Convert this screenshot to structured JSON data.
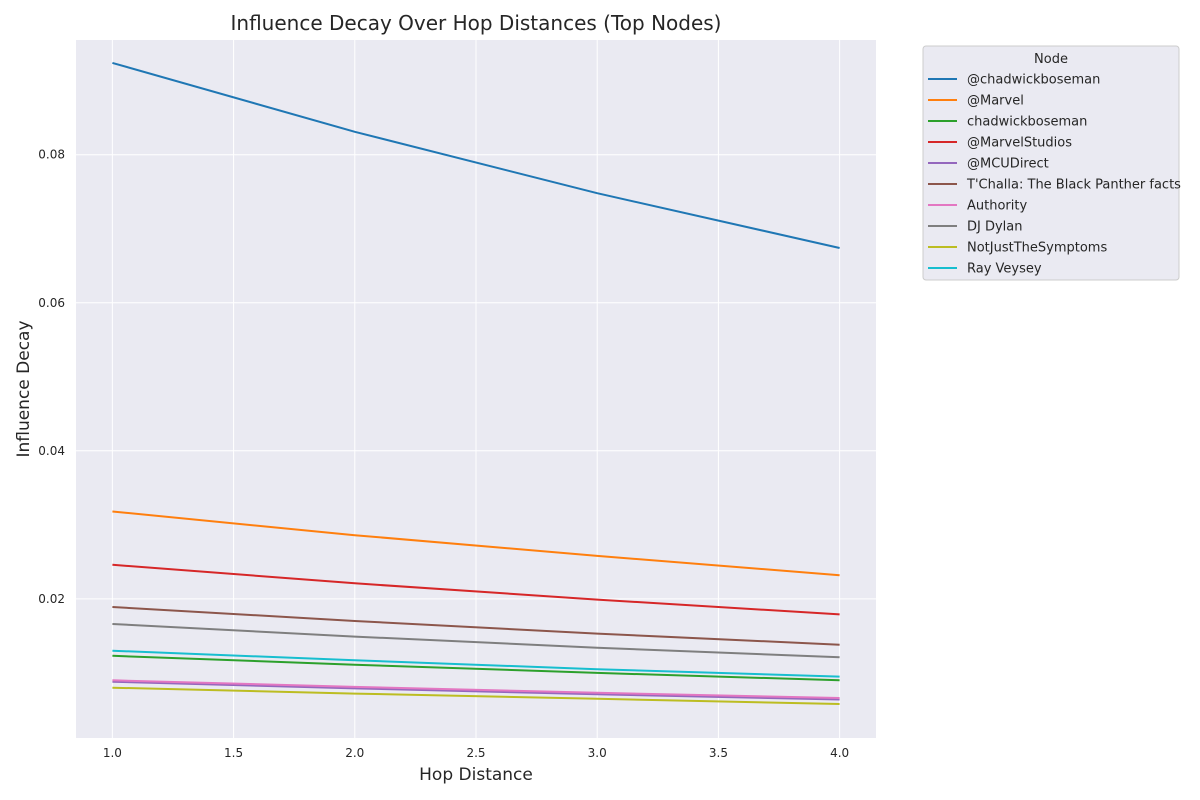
{
  "chart_data": {
    "type": "line",
    "title": "Influence Decay Over Hop Distances (Top Nodes)",
    "xlabel": "Hop Distance",
    "ylabel": "Influence Decay",
    "xlim": [
      0.85,
      4.15
    ],
    "ylim": [
      0.0012,
      0.0955
    ],
    "xticks": [
      1.0,
      1.5,
      2.0,
      2.5,
      3.0,
      3.5,
      4.0
    ],
    "xtick_labels": [
      "1.0",
      "1.5",
      "2.0",
      "2.5",
      "3.0",
      "3.5",
      "4.0"
    ],
    "yticks": [
      0.02,
      0.04,
      0.06,
      0.08
    ],
    "ytick_labels": [
      "0.02",
      "0.04",
      "0.06",
      "0.08"
    ],
    "grid": true,
    "background": "#eaeaf2",
    "legend": {
      "title": "Node",
      "placement": "outside-top-right"
    },
    "x": [
      1,
      2,
      3,
      4
    ],
    "series": [
      {
        "name": "@chadwickboseman",
        "color": "#1f77b4",
        "values": [
          0.0924,
          0.0831,
          0.0748,
          0.0674
        ]
      },
      {
        "name": "@Marvel",
        "color": "#ff7f0e",
        "values": [
          0.0318,
          0.0286,
          0.0258,
          0.0232
        ]
      },
      {
        "name": "chadwickboseman",
        "color": "#2ca02c",
        "values": [
          0.0123,
          0.0111,
          0.01,
          0.009
        ]
      },
      {
        "name": "@MarvelStudios",
        "color": "#d62728",
        "values": [
          0.0246,
          0.0221,
          0.0199,
          0.0179
        ]
      },
      {
        "name": "@MCUDirect",
        "color": "#9467bd",
        "values": [
          0.0088,
          0.0079,
          0.0071,
          0.0064
        ]
      },
      {
        "name": "T'Challa: The Black Panther facts",
        "color": "#8c564b",
        "values": [
          0.0189,
          0.017,
          0.0153,
          0.0138
        ]
      },
      {
        "name": "Authority",
        "color": "#e377c2",
        "values": [
          0.009,
          0.0081,
          0.0073,
          0.0066
        ]
      },
      {
        "name": "DJ Dylan",
        "color": "#7f7f7f",
        "values": [
          0.0166,
          0.0149,
          0.0134,
          0.0121
        ]
      },
      {
        "name": "NotJustTheSymptoms",
        "color": "#bcbd22",
        "values": [
          0.008,
          0.0072,
          0.0065,
          0.0058
        ]
      },
      {
        "name": "Ray Veysey",
        "color": "#17becf",
        "values": [
          0.013,
          0.0117,
          0.0105,
          0.0095
        ]
      }
    ]
  }
}
